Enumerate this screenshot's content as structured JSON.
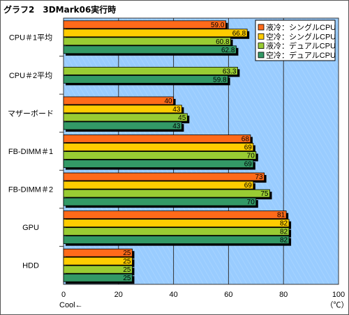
{
  "title": "グラフ2　3DMark06実行時",
  "chart_data": {
    "type": "bar",
    "orientation": "horizontal",
    "categories": [
      "CPU＃1平均",
      "CPU＃2平均",
      "マザーボード",
      "FB-DIMM＃1",
      "FB-DIMM＃2",
      "GPU",
      "HDD"
    ],
    "series": [
      {
        "name": "液冷：シングルCPU",
        "color": "#ff6a1a",
        "values": [
          59.0,
          null,
          40,
          68,
          73,
          81,
          25
        ]
      },
      {
        "name": "空冷：シングルCPU",
        "color": "#ffcc00",
        "values": [
          66.8,
          null,
          43,
          69,
          69,
          82,
          25
        ]
      },
      {
        "name": "液冷：デュアルCPU",
        "color": "#99cc33",
        "values": [
          60.8,
          63.3,
          45,
          70,
          75,
          82,
          25
        ]
      },
      {
        "name": "空冷：デュアルCPU",
        "color": "#339966",
        "values": [
          62.8,
          59.8,
          43,
          69,
          70,
          82,
          25
        ]
      }
    ],
    "value_labels": [
      [
        "59.0",
        "",
        "40",
        "68",
        "73",
        "81",
        "25"
      ],
      [
        "66.8",
        "",
        "43",
        "69",
        "69",
        "82",
        "25"
      ],
      [
        "60.8",
        "63.3",
        "45",
        "70",
        "75",
        "82",
        "25"
      ],
      [
        "62.8",
        "59.8",
        "43",
        "69",
        "70",
        "82",
        "25"
      ]
    ],
    "xlim": [
      0,
      100
    ],
    "x_ticks": [
      "0",
      "20",
      "40",
      "60",
      "80",
      "100"
    ],
    "xlabel_left": "Cool←",
    "xlabel_right": "（℃）",
    "plot_background": "#99ccff",
    "grid": true,
    "legend_position": "top-right"
  }
}
